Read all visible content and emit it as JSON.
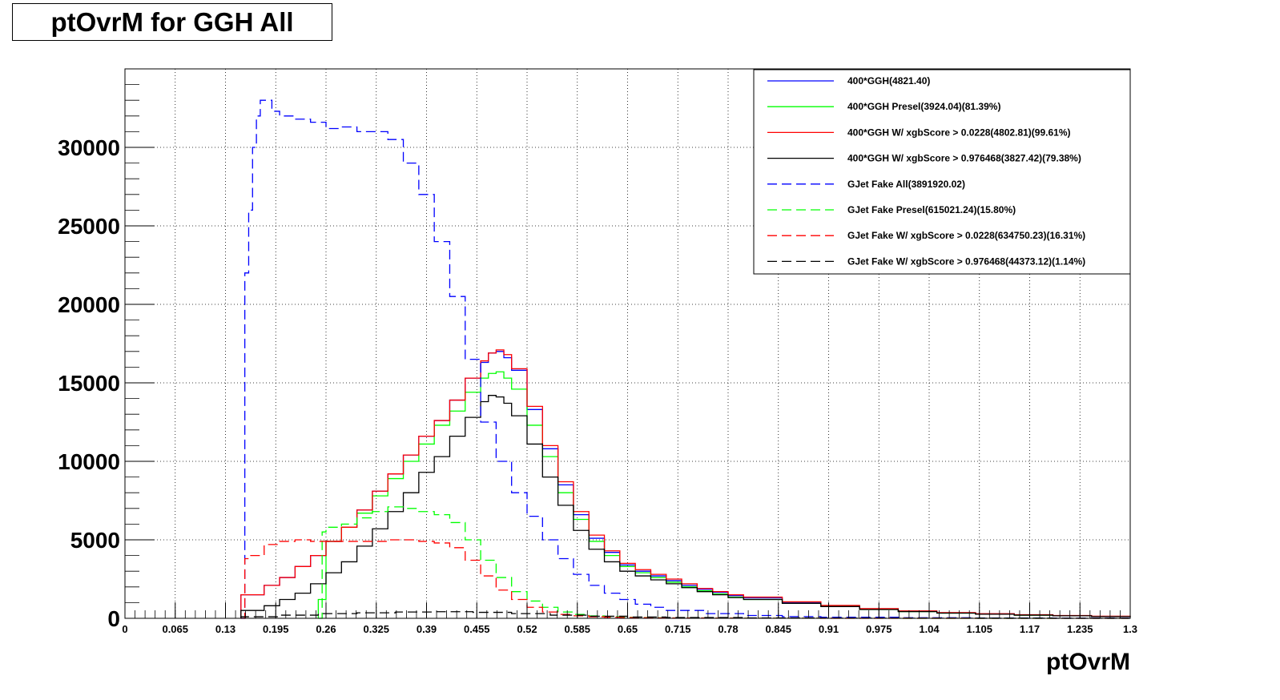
{
  "chart_data": {
    "type": "line",
    "title": "ptOvrM for GGH All",
    "xlabel": "ptOvrM",
    "ylabel": "",
    "xlim": [
      0,
      1.3
    ],
    "ylim": [
      0,
      35000
    ],
    "grid": true,
    "legend_position": "top-right",
    "x_ticks": [
      "0",
      "0.065",
      "0.13",
      "0.195",
      "0.26",
      "0.325",
      "0.39",
      "0.455",
      "0.52",
      "0.585",
      "0.65",
      "0.715",
      "0.78",
      "0.845",
      "0.91",
      "0.975",
      "1.04",
      "1.105",
      "1.17",
      "1.235",
      "1.3"
    ],
    "y_ticks": [
      "0",
      "5000",
      "10000",
      "15000",
      "20000",
      "25000",
      "30000"
    ],
    "series": [
      {
        "name": "400*GGH(4821.40)",
        "color": "#0000ff",
        "dash": "solid",
        "x": [
          0.15,
          0.18,
          0.2,
          0.22,
          0.24,
          0.26,
          0.28,
          0.3,
          0.32,
          0.34,
          0.36,
          0.38,
          0.4,
          0.42,
          0.44,
          0.46,
          0.47,
          0.48,
          0.49,
          0.5,
          0.52,
          0.54,
          0.56,
          0.58,
          0.6,
          0.62,
          0.64,
          0.66,
          0.68,
          0.7,
          0.72,
          0.74,
          0.76,
          0.78,
          0.8,
          0.85,
          0.9,
          0.95,
          1.0,
          1.05,
          1.1,
          1.15,
          1.2,
          1.25,
          1.3
        ],
        "y": [
          1500,
          2100,
          2600,
          3300,
          4000,
          4900,
          5800,
          6900,
          8100,
          9200,
          10400,
          11600,
          12600,
          13900,
          15300,
          16300,
          16900,
          17000,
          16600,
          15800,
          13300,
          10800,
          8500,
          6600,
          5100,
          4200,
          3400,
          3000,
          2700,
          2400,
          2100,
          1850,
          1650,
          1450,
          1300,
          1000,
          800,
          600,
          450,
          350,
          280,
          220,
          170,
          120,
          90
        ]
      },
      {
        "name": "400*GGH Presel(3924.04)(81.39%)",
        "color": "#00ff00",
        "dash": "solid",
        "x": [
          0.25,
          0.26,
          0.28,
          0.3,
          0.32,
          0.34,
          0.36,
          0.38,
          0.4,
          0.42,
          0.44,
          0.46,
          0.47,
          0.48,
          0.49,
          0.5,
          0.52,
          0.54,
          0.56,
          0.58,
          0.6,
          0.62,
          0.64,
          0.66,
          0.68,
          0.7,
          0.72,
          0.74,
          0.76,
          0.78,
          0.8,
          0.85,
          0.9,
          0.95,
          1.0,
          1.05,
          1.1,
          1.15,
          1.2,
          1.25,
          1.3
        ],
        "y": [
          1200,
          4900,
          5800,
          6700,
          7800,
          8900,
          10000,
          11100,
          12300,
          13200,
          14400,
          15300,
          15600,
          15700,
          15300,
          14600,
          12300,
          10300,
          8000,
          6300,
          4900,
          4000,
          3300,
          2900,
          2600,
          2300,
          2000,
          1750,
          1550,
          1350,
          1200,
          950,
          750,
          560,
          430,
          330,
          260,
          200,
          160,
          110,
          80
        ]
      },
      {
        "name": "400*GGH W/ xgbScore > 0.0228(4802.81)(99.61%)",
        "color": "#ff0000",
        "dash": "solid",
        "x": [
          0.15,
          0.18,
          0.2,
          0.22,
          0.24,
          0.26,
          0.28,
          0.3,
          0.32,
          0.34,
          0.36,
          0.38,
          0.4,
          0.42,
          0.44,
          0.46,
          0.47,
          0.48,
          0.49,
          0.5,
          0.52,
          0.54,
          0.56,
          0.58,
          0.6,
          0.62,
          0.64,
          0.66,
          0.68,
          0.7,
          0.72,
          0.74,
          0.76,
          0.78,
          0.8,
          0.85,
          0.9,
          0.95,
          1.0,
          1.05,
          1.1,
          1.15,
          1.2,
          1.25,
          1.3
        ],
        "y": [
          1500,
          2100,
          2600,
          3300,
          4000,
          4900,
          5800,
          6900,
          8100,
          9200,
          10400,
          11600,
          12600,
          13900,
          15300,
          16400,
          16900,
          17100,
          16800,
          15900,
          13500,
          11000,
          8700,
          6800,
          5300,
          4300,
          3500,
          3100,
          2800,
          2500,
          2200,
          1900,
          1700,
          1500,
          1350,
          1050,
          820,
          620,
          470,
          360,
          290,
          230,
          180,
          130,
          95
        ]
      },
      {
        "name": "400*GGH W/ xgbScore > 0.976468(3827.42)(79.38%)",
        "color": "#000000",
        "dash": "solid",
        "x": [
          0.15,
          0.18,
          0.2,
          0.22,
          0.24,
          0.26,
          0.28,
          0.3,
          0.32,
          0.34,
          0.36,
          0.38,
          0.4,
          0.42,
          0.44,
          0.46,
          0.47,
          0.48,
          0.49,
          0.5,
          0.52,
          0.54,
          0.56,
          0.58,
          0.6,
          0.62,
          0.64,
          0.66,
          0.68,
          0.7,
          0.72,
          0.74,
          0.76,
          0.78,
          0.8,
          0.85,
          0.9,
          0.95,
          1.0,
          1.05,
          1.1,
          1.15,
          1.2,
          1.25,
          1.3
        ],
        "y": [
          500,
          800,
          1200,
          1600,
          2200,
          2900,
          3600,
          4600,
          5700,
          6800,
          8000,
          9300,
          10300,
          11600,
          12800,
          13800,
          14200,
          14100,
          13700,
          12900,
          11100,
          9000,
          7200,
          5600,
          4400,
          3600,
          3000,
          2700,
          2450,
          2200,
          1950,
          1700,
          1500,
          1320,
          1200,
          950,
          750,
          560,
          430,
          330,
          260,
          200,
          160,
          110,
          80
        ]
      },
      {
        "name": "GJet Fake All(3891920.02)",
        "color": "#0000ff",
        "dash": "dashed",
        "x": [
          0.15,
          0.155,
          0.16,
          0.165,
          0.17,
          0.175,
          0.18,
          0.19,
          0.2,
          0.22,
          0.24,
          0.26,
          0.28,
          0.3,
          0.32,
          0.34,
          0.36,
          0.38,
          0.4,
          0.42,
          0.44,
          0.46,
          0.48,
          0.5,
          0.52,
          0.54,
          0.56,
          0.58,
          0.6,
          0.62,
          0.64,
          0.66,
          0.68,
          0.7,
          0.75,
          0.8,
          0.85,
          0.9,
          1.0,
          1.1,
          1.2,
          1.3
        ],
        "y": [
          0,
          22000,
          26000,
          30000,
          32000,
          33000,
          33000,
          32300,
          32000,
          31800,
          31600,
          31200,
          31300,
          31000,
          31000,
          30500,
          29000,
          27000,
          24000,
          20500,
          16500,
          12500,
          10000,
          8000,
          6500,
          5000,
          3800,
          2800,
          2100,
          1600,
          1200,
          900,
          700,
          500,
          300,
          180,
          110,
          70,
          40,
          25,
          15,
          10
        ]
      },
      {
        "name": "GJet Fake Presel(615021.24)(15.80%)",
        "color": "#00ff00",
        "dash": "dashed",
        "x": [
          0.25,
          0.255,
          0.26,
          0.28,
          0.3,
          0.32,
          0.34,
          0.36,
          0.38,
          0.4,
          0.42,
          0.44,
          0.46,
          0.48,
          0.5,
          0.52,
          0.54,
          0.56,
          0.58,
          0.6,
          0.62,
          0.64,
          0.66,
          0.68,
          0.7,
          0.75,
          0.8,
          0.9,
          1.0,
          1.1,
          1.2,
          1.3
        ],
        "y": [
          0,
          5500,
          5800,
          6000,
          6400,
          6800,
          7100,
          7000,
          6800,
          6600,
          6100,
          5000,
          3700,
          2600,
          1700,
          1100,
          700,
          400,
          250,
          150,
          100,
          70,
          50,
          35,
          25,
          15,
          10,
          5,
          3,
          2,
          1,
          0
        ]
      },
      {
        "name": "GJet Fake W/ xgbScore > 0.0228(634750.23)(16.31%)",
        "color": "#ff0000",
        "dash": "dashed",
        "x": [
          0.15,
          0.155,
          0.16,
          0.18,
          0.2,
          0.22,
          0.24,
          0.26,
          0.28,
          0.3,
          0.32,
          0.34,
          0.36,
          0.38,
          0.4,
          0.42,
          0.44,
          0.46,
          0.48,
          0.5,
          0.52,
          0.54,
          0.56,
          0.58,
          0.6,
          0.62,
          0.64,
          0.66,
          0.68,
          0.7,
          0.75,
          0.8,
          0.9,
          1.0,
          1.1,
          1.2,
          1.3
        ],
        "y": [
          0,
          3800,
          4000,
          4700,
          4900,
          5000,
          4900,
          4900,
          4900,
          4900,
          4900,
          5000,
          5000,
          4900,
          4800,
          4500,
          3700,
          2700,
          1800,
          1200,
          700,
          400,
          250,
          160,
          100,
          70,
          50,
          35,
          25,
          15,
          10,
          5,
          3,
          2,
          1,
          0,
          0
        ]
      },
      {
        "name": "GJet Fake W/ xgbScore > 0.976468(44373.12)(1.14%)",
        "color": "#000000",
        "dash": "dashed",
        "x": [
          0.15,
          0.2,
          0.25,
          0.3,
          0.35,
          0.4,
          0.45,
          0.5,
          0.55,
          0.6,
          0.65,
          0.7,
          0.8,
          0.9,
          1.0,
          1.1,
          1.2,
          1.3
        ],
        "y": [
          100,
          200,
          300,
          350,
          400,
          420,
          380,
          300,
          200,
          130,
          80,
          50,
          25,
          12,
          6,
          3,
          1,
          0
        ]
      }
    ]
  }
}
